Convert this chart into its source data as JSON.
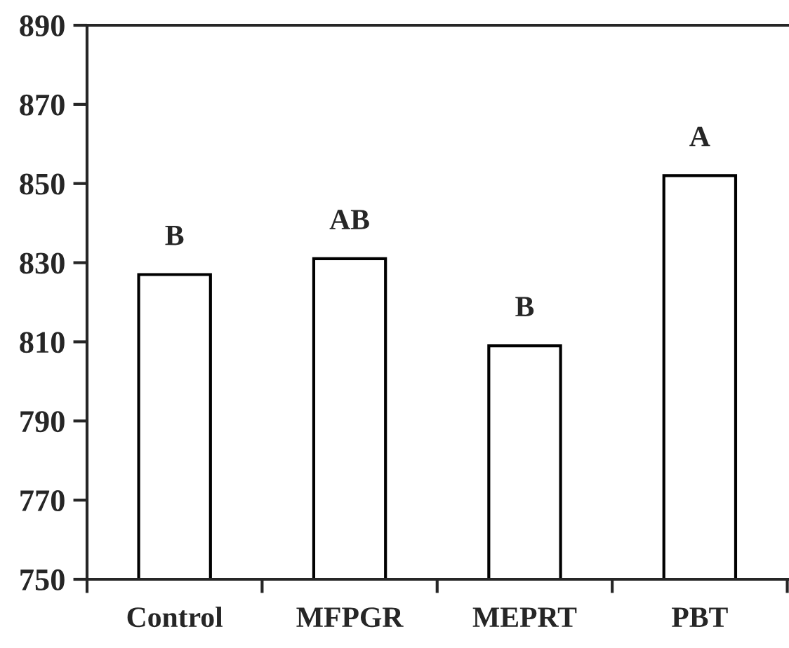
{
  "chart_data": {
    "type": "bar",
    "categories": [
      "Control",
      "MFPGR",
      "MEPRT",
      "PBT"
    ],
    "values": [
      827,
      831,
      809,
      852
    ],
    "color": "#ffffff",
    "ylim": [
      750,
      890
    ],
    "yticks": [
      750,
      770,
      790,
      810,
      830,
      850,
      870,
      890
    ],
    "grid": false,
    "annotations": [
      {
        "text": "B",
        "x": "Control",
        "y": 827
      },
      {
        "text": "AB",
        "x": "MFPGR",
        "y": 831
      },
      {
        "text": "B",
        "x": "MEPRT",
        "y": 809
      },
      {
        "text": "A",
        "x": "PBT",
        "y": 852
      }
    ]
  }
}
